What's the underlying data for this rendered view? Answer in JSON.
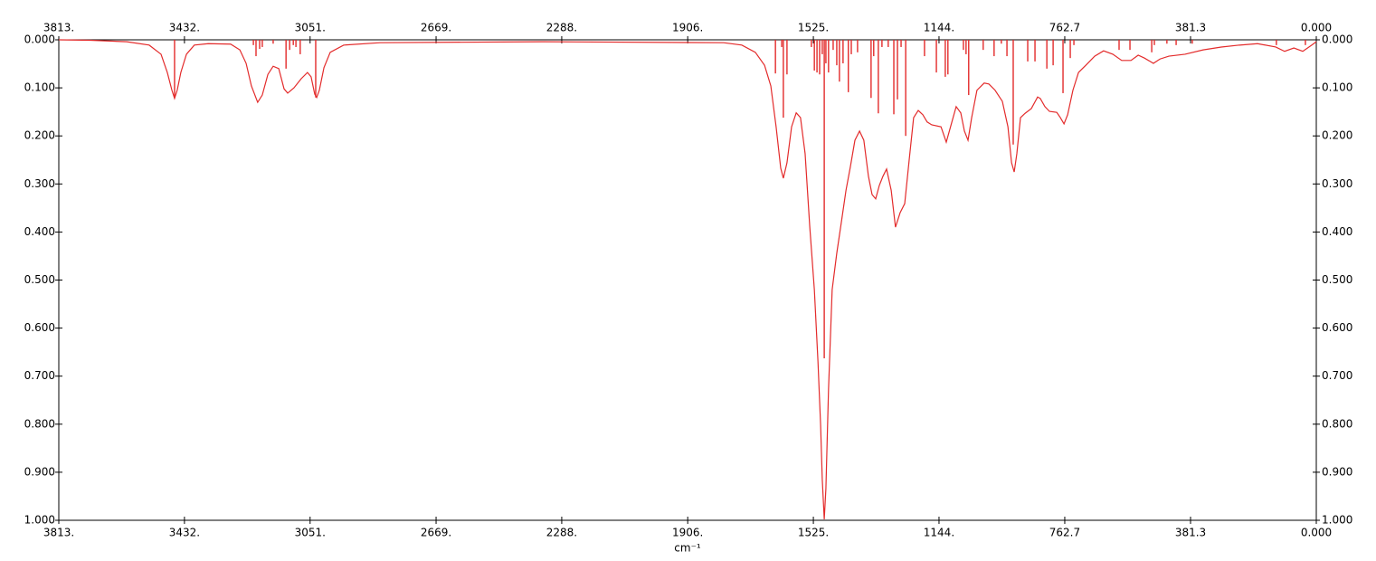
{
  "chart_data": {
    "type": "line",
    "x_label": "cm⁻¹",
    "xlim": [
      3813,
      0
    ],
    "ylim": [
      1,
      0
    ],
    "xticks": [
      {
        "value": 3813,
        "label": "3813."
      },
      {
        "value": 3432,
        "label": "3432."
      },
      {
        "value": 3051,
        "label": "3051."
      },
      {
        "value": 2669,
        "label": "2669."
      },
      {
        "value": 2288,
        "label": "2288."
      },
      {
        "value": 1906,
        "label": "1906."
      },
      {
        "value": 1525,
        "label": "1525."
      },
      {
        "value": 1144,
        "label": "1144."
      },
      762.7,
      381.3,
      {
        "value": 0,
        "label": "0.000"
      }
    ],
    "yticks": [
      {
        "value": 0,
        "label": "0.000"
      },
      {
        "value": 0.1,
        "label": "0.100"
      },
      {
        "value": 0.2,
        "label": "0.200"
      },
      {
        "value": 0.3,
        "label": "0.300"
      },
      {
        "value": 0.4,
        "label": "0.400"
      },
      {
        "value": 0.5,
        "label": "0.500"
      },
      {
        "value": 0.6,
        "label": "0.600"
      },
      {
        "value": 0.7,
        "label": "0.700"
      },
      {
        "value": 0.8,
        "label": "0.800"
      },
      {
        "value": 0.9,
        "label": "0.900"
      },
      {
        "value": 1,
        "label": "1.000"
      }
    ],
    "series": [
      {
        "type": "line",
        "color": "#e32b2b",
        "x": [
          3813,
          3717,
          3607,
          3539,
          3503,
          3484,
          3470,
          3462,
          3454,
          3443,
          3426,
          3402,
          3360,
          3292,
          3264,
          3245,
          3229,
          3210,
          3196,
          3179,
          3163,
          3146,
          3130,
          3119,
          3100,
          3078,
          3059,
          3048,
          3037,
          3031,
          3023,
          3009,
          2990,
          2949,
          2839,
          2345,
          1797,
          1742,
          1701,
          1673,
          1654,
          1638,
          1624,
          1616,
          1605,
          1591,
          1577,
          1564,
          1550,
          1536,
          1522,
          1511,
          1503,
          1498,
          1492,
          1487,
          1479,
          1468,
          1454,
          1440,
          1426,
          1413,
          1399,
          1385,
          1372,
          1358,
          1347,
          1336,
          1325,
          1314,
          1303,
          1289,
          1276,
          1262,
          1248,
          1234,
          1221,
          1207,
          1193,
          1180,
          1166,
          1138,
          1122,
          1105,
          1092,
          1078,
          1067,
          1056,
          1045,
          1029,
          1007,
          993,
          974,
          952,
          935,
          924,
          916,
          908,
          897,
          883,
          864,
          845,
          837,
          823,
          809,
          787,
          776,
          765,
          754,
          738,
          721,
          699,
          672,
          645,
          617,
          590,
          562,
          540,
          521,
          494,
          474,
          447,
          398,
          343,
          288,
          233,
          178,
          123,
          96,
          68,
          41,
          14,
          0
        ],
        "values": [
          0,
          0.001,
          0.004,
          0.011,
          0.03,
          0.068,
          0.105,
          0.122,
          0.105,
          0.068,
          0.03,
          0.011,
          0.008,
          0.009,
          0.021,
          0.049,
          0.096,
          0.13,
          0.115,
          0.072,
          0.055,
          0.06,
          0.102,
          0.111,
          0.1,
          0.081,
          0.068,
          0.077,
          0.113,
          0.12,
          0.105,
          0.058,
          0.026,
          0.011,
          0.006,
          0.004,
          0.006,
          0.011,
          0.026,
          0.053,
          0.096,
          0.181,
          0.267,
          0.288,
          0.256,
          0.181,
          0.152,
          0.162,
          0.237,
          0.388,
          0.52,
          0.67,
          0.802,
          0.915,
          0.998,
          0.934,
          0.727,
          0.52,
          0.444,
          0.379,
          0.313,
          0.265,
          0.209,
          0.19,
          0.209,
          0.284,
          0.322,
          0.331,
          0.303,
          0.284,
          0.269,
          0.313,
          0.39,
          0.36,
          0.341,
          0.247,
          0.162,
          0.147,
          0.156,
          0.171,
          0.177,
          0.181,
          0.213,
          0.171,
          0.139,
          0.152,
          0.19,
          0.209,
          0.162,
          0.105,
          0.09,
          0.092,
          0.105,
          0.128,
          0.181,
          0.256,
          0.275,
          0.237,
          0.162,
          0.153,
          0.143,
          0.119,
          0.122,
          0.139,
          0.149,
          0.151,
          0.162,
          0.175,
          0.156,
          0.105,
          0.068,
          0.053,
          0.034,
          0.023,
          0.03,
          0.043,
          0.043,
          0.032,
          0.038,
          0.049,
          0.04,
          0.034,
          0.03,
          0.021,
          0.015,
          0.011,
          0.008,
          0.015,
          0.024,
          0.017,
          0.024,
          0.011,
          0.004
        ]
      },
      {
        "type": "stick",
        "color": "#e32b2b",
        "x": [
          3462,
          3223,
          3215,
          3204,
          3196,
          3163,
          3124,
          3113,
          3102,
          3094,
          3081,
          3034,
          1640,
          1621,
          1616,
          1605,
          1531,
          1522,
          1514,
          1506,
          1498,
          1492,
          1487,
          1479,
          1465,
          1454,
          1446,
          1435,
          1419,
          1410,
          1391,
          1350,
          1342,
          1328,
          1317,
          1298,
          1281,
          1270,
          1259,
          1245,
          1188,
          1152,
          1125,
          1117,
          1070,
          1062,
          1054,
          1010,
          977,
          955,
          938,
          919,
          875,
          853,
          817,
          798,
          768,
          746,
          735,
          598,
          565,
          499,
          491,
          453,
          425,
          376,
          121,
          33
        ],
        "values": [
          0.12,
          0.011,
          0.034,
          0.019,
          0.015,
          0.008,
          0.06,
          0.021,
          0.011,
          0.015,
          0.03,
          0.12,
          0.07,
          0.015,
          0.162,
          0.072,
          0.015,
          0.064,
          0.068,
          0.072,
          0.03,
          0.663,
          0.049,
          0.068,
          0.021,
          0.053,
          0.087,
          0.049,
          0.109,
          0.03,
          0.026,
          0.121,
          0.034,
          0.153,
          0.015,
          0.015,
          0.155,
          0.124,
          0.015,
          0.2,
          0.034,
          0.068,
          0.077,
          0.072,
          0.021,
          0.03,
          0.115,
          0.021,
          0.034,
          0.008,
          0.034,
          0.218,
          0.045,
          0.045,
          0.06,
          0.053,
          0.111,
          0.038,
          0.011,
          0.021,
          0.021,
          0.026,
          0.011,
          0.008,
          0.011,
          0.008,
          0.011,
          0.011
        ]
      }
    ]
  }
}
